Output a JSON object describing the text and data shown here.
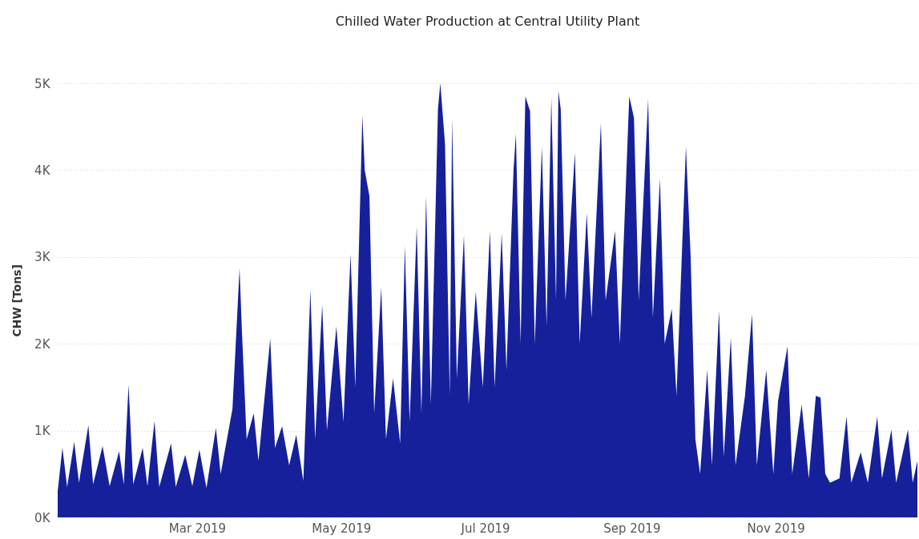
{
  "chart_data": {
    "type": "area",
    "title": "Chilled Water Production at Central Utility Plant",
    "ylabel": "CHW [Tons]",
    "x": [
      "2019-01-01",
      "2019-01-03",
      "2019-01-05",
      "2019-01-08",
      "2019-01-10",
      "2019-01-14",
      "2019-01-16",
      "2019-01-20",
      "2019-01-23",
      "2019-01-27",
      "2019-01-29",
      "2019-01-31",
      "2019-02-02",
      "2019-02-06",
      "2019-02-08",
      "2019-02-11",
      "2019-02-13",
      "2019-02-18",
      "2019-02-20",
      "2019-02-24",
      "2019-02-27",
      "2019-03-02",
      "2019-03-05",
      "2019-03-09",
      "2019-03-11",
      "2019-03-16",
      "2019-03-19",
      "2019-03-20",
      "2019-03-22",
      "2019-03-25",
      "2019-03-27",
      "2019-04-01",
      "2019-04-03",
      "2019-04-06",
      "2019-04-09",
      "2019-04-12",
      "2019-04-15",
      "2019-04-18",
      "2019-04-20",
      "2019-04-23",
      "2019-04-25",
      "2019-04-29",
      "2019-05-02",
      "2019-05-05",
      "2019-05-07",
      "2019-05-10",
      "2019-05-11",
      "2019-05-13",
      "2019-05-15",
      "2019-05-18",
      "2019-05-20",
      "2019-05-23",
      "2019-05-26",
      "2019-05-28",
      "2019-05-30",
      "2019-06-02",
      "2019-06-04",
      "2019-06-06",
      "2019-06-08",
      "2019-06-11",
      "2019-06-12",
      "2019-06-14",
      "2019-06-16",
      "2019-06-17",
      "2019-06-19",
      "2019-06-22",
      "2019-06-24",
      "2019-06-27",
      "2019-06-30",
      "2019-07-03",
      "2019-07-05",
      "2019-07-08",
      "2019-07-10",
      "2019-07-13",
      "2019-07-14",
      "2019-07-16",
      "2019-07-18",
      "2019-07-20",
      "2019-07-22",
      "2019-07-25",
      "2019-07-27",
      "2019-07-29",
      "2019-07-31",
      "2019-08-01",
      "2019-08-02",
      "2019-08-04",
      "2019-08-08",
      "2019-08-10",
      "2019-08-13",
      "2019-08-15",
      "2019-08-19",
      "2019-08-21",
      "2019-08-25",
      "2019-08-27",
      "2019-08-31",
      "2019-09-02",
      "2019-09-04",
      "2019-09-08",
      "2019-09-10",
      "2019-09-13",
      "2019-09-15",
      "2019-09-18",
      "2019-09-20",
      "2019-09-24",
      "2019-09-26",
      "2019-09-28",
      "2019-09-30",
      "2019-10-03",
      "2019-10-05",
      "2019-10-08",
      "2019-10-10",
      "2019-10-13",
      "2019-10-15",
      "2019-10-19",
      "2019-10-22",
      "2019-10-24",
      "2019-10-28",
      "2019-10-31",
      "2019-11-02",
      "2019-11-06",
      "2019-11-08",
      "2019-11-12",
      "2019-11-15",
      "2019-11-18",
      "2019-11-20",
      "2019-11-22",
      "2019-11-24",
      "2019-11-28",
      "2019-12-01",
      "2019-12-03",
      "2019-12-07",
      "2019-12-10",
      "2019-12-14",
      "2019-12-16",
      "2019-12-20",
      "2019-12-22",
      "2019-12-27",
      "2019-12-29",
      "2019-12-31"
    ],
    "series": [
      {
        "color": "#16209a",
        "values": [
          300,
          800,
          350,
          870,
          400,
          1060,
          380,
          820,
          360,
          760,
          380,
          1530,
          380,
          800,
          360,
          1110,
          350,
          850,
          350,
          720,
          360,
          780,
          340,
          1030,
          500,
          1250,
          2870,
          2150,
          900,
          1200,
          650,
          2060,
          800,
          1050,
          600,
          950,
          420,
          2620,
          900,
          2450,
          1000,
          2200,
          1100,
          3030,
          1500,
          4630,
          4000,
          3700,
          1200,
          2650,
          900,
          1600,
          850,
          3130,
          1100,
          3350,
          1200,
          3700,
          1300,
          4700,
          5000,
          4300,
          1400,
          4600,
          1600,
          3250,
          1300,
          2600,
          1500,
          3300,
          1500,
          3270,
          1700,
          4000,
          4420,
          2000,
          4850,
          4680,
          2000,
          4270,
          2200,
          4830,
          2500,
          4910,
          4700,
          2500,
          4200,
          2000,
          3500,
          2300,
          4540,
          2500,
          3300,
          2000,
          4850,
          4600,
          2500,
          4820,
          2300,
          3900,
          2000,
          2400,
          1400,
          4270,
          3000,
          900,
          500,
          1700,
          600,
          2380,
          700,
          2070,
          600,
          1400,
          2340,
          600,
          1700,
          500,
          1340,
          1970,
          500,
          1300,
          450,
          1400,
          1380,
          500,
          400,
          450,
          1160,
          400,
          750,
          400,
          1160,
          450,
          1010,
          400,
          1010,
          400,
          650
        ]
      }
    ],
    "xlim": [
      "2019-01-01",
      "2019-12-31"
    ],
    "xticks": [
      {
        "value": "2019-03-01",
        "label": "Mar 2019"
      },
      {
        "value": "2019-05-01",
        "label": "May 2019"
      },
      {
        "value": "2019-07-01",
        "label": "Jul 2019"
      },
      {
        "value": "2019-09-01",
        "label": "Sep 2019"
      },
      {
        "value": "2019-11-01",
        "label": "Nov 2019"
      }
    ],
    "ylim": [
      0,
      5000
    ],
    "yticks": [
      {
        "value": 0,
        "label": "0K"
      },
      {
        "value": 1000,
        "label": "1K"
      },
      {
        "value": 2000,
        "label": "2K"
      },
      {
        "value": 3000,
        "label": "3K"
      },
      {
        "value": 4000,
        "label": "4K"
      },
      {
        "value": 5000,
        "label": "5K"
      }
    ],
    "grid": "y"
  }
}
